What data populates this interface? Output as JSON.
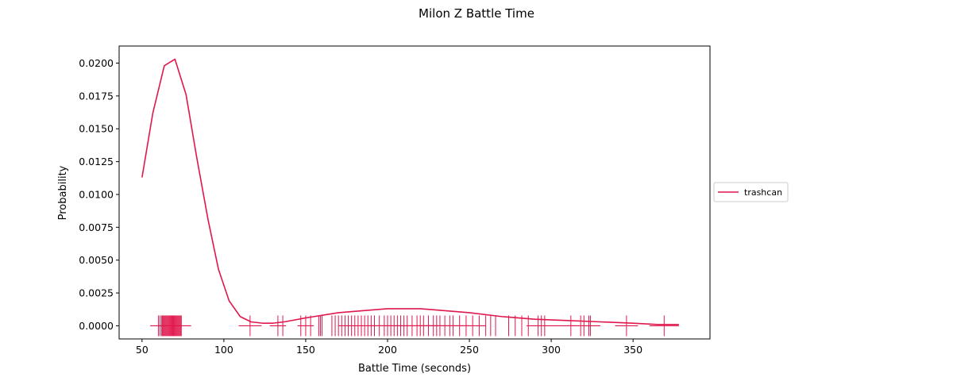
{
  "chart_data": {
    "type": "line",
    "title": "Milon Z Battle Time",
    "xlabel": "Battle Time (seconds)",
    "ylabel": "Probability",
    "xlim": [
      36,
      397
    ],
    "ylim": [
      -0.001,
      0.0213
    ],
    "x_ticks": [
      50,
      100,
      150,
      200,
      250,
      300,
      350
    ],
    "x_tick_labels": [
      "50",
      "100",
      "150",
      "200",
      "250",
      "300",
      "350"
    ],
    "y_ticks": [
      0,
      0.0025,
      0.005,
      0.0075,
      0.01,
      0.0125,
      0.015,
      0.0175,
      0.02
    ],
    "y_tick_labels": [
      "0.0000",
      "0.0025",
      "0.0050",
      "0.0075",
      "0.0100",
      "0.0125",
      "0.0150",
      "0.0175",
      "0.0200"
    ],
    "legend": {
      "position": "center-right-outside",
      "entries": [
        "trashcan"
      ]
    },
    "color": "#e0174d",
    "series": [
      {
        "name": "trashcan",
        "x": [
          50,
          56.6,
          63.6,
          70.1,
          76.9,
          83.3,
          90.3,
          96.7,
          103.2,
          110,
          116.6,
          123.5,
          130,
          136.9,
          150,
          170,
          190,
          200,
          210,
          220,
          230,
          250,
          270,
          290,
          310,
          330,
          350,
          365,
          378
        ],
        "y": [
          0.0113,
          0.0162,
          0.0198,
          0.0203,
          0.0176,
          0.0129,
          0.0081,
          0.0043,
          0.0019,
          0.0007,
          0.0003,
          0.0002,
          0.0002,
          0.0003,
          0.0006,
          0.001,
          0.0012,
          0.0013,
          0.0013,
          0.0013,
          0.0012,
          0.001,
          0.0007,
          0.0005,
          0.0004,
          0.0003,
          0.0002,
          0.0001,
          0.0001
        ]
      }
    ],
    "rug": [
      60,
      61,
      62,
      62.5,
      63,
      63.5,
      64,
      64.5,
      65,
      65.5,
      66,
      66.5,
      67,
      67.5,
      68,
      68.5,
      69,
      69.5,
      70,
      70.5,
      71,
      71.5,
      72,
      72.5,
      73,
      73.5,
      74,
      116,
      133,
      136,
      147,
      150,
      153,
      158,
      159,
      160,
      166,
      168,
      170,
      172,
      174,
      176,
      178,
      180,
      182,
      184,
      186,
      188,
      190,
      192,
      195,
      198,
      200,
      202,
      204,
      206,
      208,
      210,
      212,
      215,
      218,
      220,
      222,
      225,
      228,
      230,
      232,
      235,
      238,
      240,
      244,
      248,
      252,
      256,
      260,
      263,
      266,
      274,
      278,
      282,
      286,
      292,
      294,
      296,
      312,
      318,
      320,
      323,
      324,
      346,
      369
    ],
    "rug_marker_widths": [
      {
        "x": 64,
        "width": 18
      },
      {
        "x": 70,
        "width": 20
      },
      {
        "x": 116,
        "width": 14
      },
      {
        "x": 133,
        "width": 10
      },
      {
        "x": 150,
        "width": 10
      },
      {
        "x": 200,
        "width": 60
      },
      {
        "x": 220,
        "width": 60
      },
      {
        "x": 240,
        "width": 40
      },
      {
        "x": 300,
        "width": 30
      },
      {
        "x": 320,
        "width": 20
      },
      {
        "x": 346,
        "width": 14
      },
      {
        "x": 369,
        "width": 18
      }
    ]
  }
}
